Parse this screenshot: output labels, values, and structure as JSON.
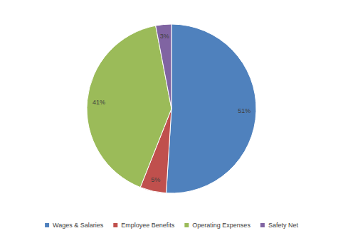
{
  "chart_data": {
    "type": "pie",
    "categories": [
      "Wages & Salaries",
      "Employee Benefits",
      "Operating Expenses",
      "Safety Net"
    ],
    "values": [
      51,
      5,
      41,
      3
    ],
    "value_labels": [
      "51%",
      "5%",
      "41%",
      "3%"
    ],
    "colors": [
      "#4f81bd",
      "#c0504d",
      "#9bbb59",
      "#8064a2"
    ],
    "data_labels": true,
    "legend": "bottom"
  }
}
